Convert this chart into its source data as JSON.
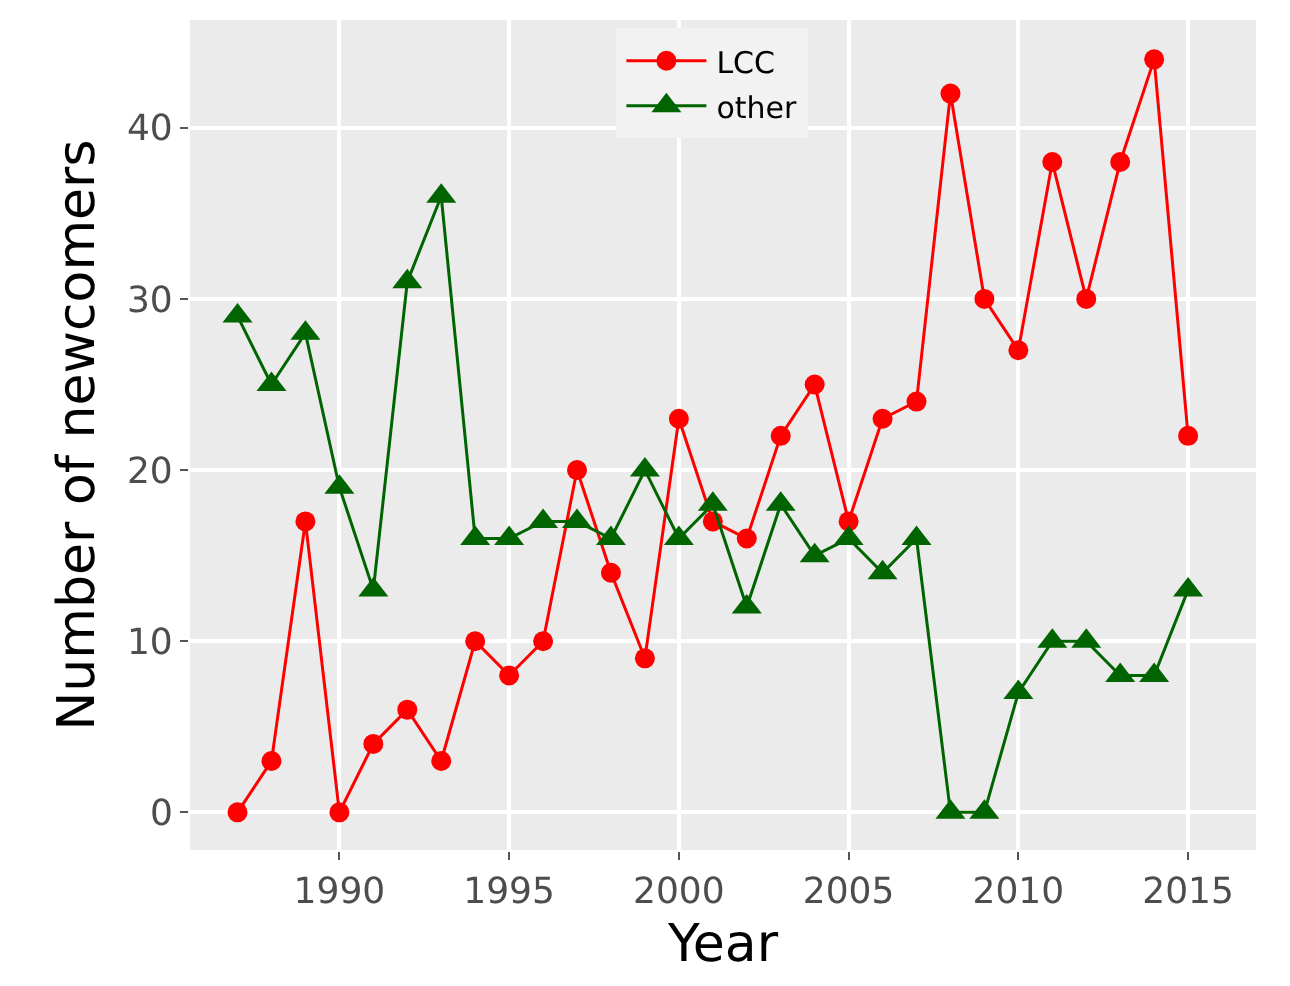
{
  "chart_data": {
    "type": "line",
    "xlabel": "Year",
    "ylabel": "Number of newcomers",
    "x": [
      1987,
      1988,
      1989,
      1990,
      1991,
      1992,
      1993,
      1994,
      1995,
      1996,
      1997,
      1998,
      1999,
      2000,
      2001,
      2002,
      2003,
      2004,
      2005,
      2006,
      2007,
      2008,
      2009,
      2010,
      2011,
      2012,
      2013,
      2014,
      2015
    ],
    "series": [
      {
        "name": "LCC",
        "color": "#ff0000",
        "marker": "circle",
        "values": [
          0,
          3,
          17,
          0,
          4,
          6,
          3,
          10,
          8,
          10,
          20,
          14,
          9,
          23,
          17,
          16,
          22,
          25,
          17,
          23,
          24,
          42,
          30,
          27,
          38,
          30,
          38,
          44,
          22
        ]
      },
      {
        "name": "other",
        "color": "#006400",
        "marker": "triangle",
        "values": [
          29,
          25,
          28,
          19,
          13,
          31,
          36,
          16,
          16,
          17,
          17,
          16,
          20,
          16,
          18,
          12,
          18,
          15,
          16,
          14,
          16,
          0,
          0,
          7,
          10,
          10,
          8,
          8,
          13
        ]
      }
    ],
    "xlim": [
      1985.6,
      2017
    ],
    "ylim": [
      -2.2,
      46.3
    ],
    "xticks": [
      1990,
      1995,
      2000,
      2005,
      2010,
      2015
    ],
    "yticks": [
      0,
      10,
      20,
      30,
      40
    ],
    "grid": true,
    "legend": "top",
    "line_style": "solid"
  }
}
